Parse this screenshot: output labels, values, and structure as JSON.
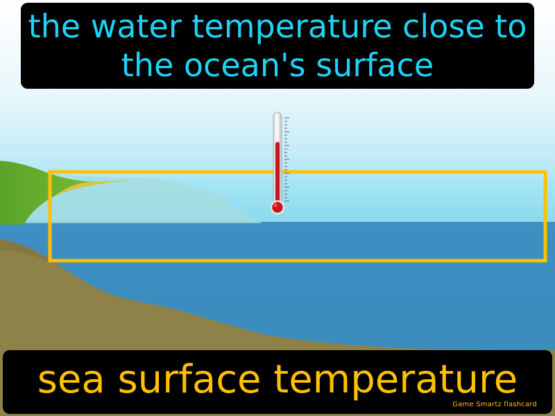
{
  "definition": "the water temperature close to the ocean's surface",
  "term": "sea surface temperature",
  "brand": "Game Smartz flashcard",
  "colors": {
    "definition_text": "#1fd3f5",
    "term_text": "#ffc000",
    "highlight_frame": "#ffc000",
    "sky_top": "#ffffff",
    "sky_bottom": "#8fdcf0",
    "ocean_surface": "#8ee0f2",
    "ocean_deep": "#3f8fc2",
    "seafloor": "#8f8248",
    "cliff": "#6bb232",
    "mercury": "#c8161d"
  },
  "icons": [
    "thermometer-icon"
  ],
  "thermometer": {
    "fill_level": 0.72
  }
}
